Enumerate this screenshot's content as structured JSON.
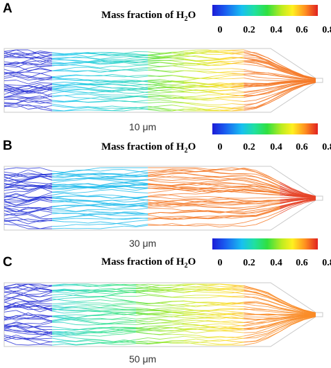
{
  "panels": [
    {
      "letter": "A",
      "legend_title": "Mass fraction of H",
      "legend_sub": "2",
      "legend_tail": "O",
      "ticks": [
        "0",
        "0.2",
        "0.4",
        "0.6",
        "0.8"
      ],
      "scale": "10 μm"
    },
    {
      "letter": "B",
      "legend_title": "Mass fraction of H",
      "legend_sub": "2",
      "legend_tail": "O",
      "ticks": [
        "0",
        "0.2",
        "0.4",
        "0.6",
        "0.8"
      ],
      "scale": "30 μm"
    },
    {
      "letter": "C",
      "legend_title": "Mass fraction of H",
      "legend_sub": "2",
      "legend_tail": "O",
      "ticks": [
        "0",
        "0.2",
        "0.4",
        "0.6",
        "0.8"
      ],
      "scale": "50 μm"
    }
  ],
  "colors": {
    "low": "#2a2ad0",
    "mid_low": "#20c0e8",
    "mid": "#40e040",
    "mid_high": "#f0e030",
    "high": "#e04020"
  }
}
